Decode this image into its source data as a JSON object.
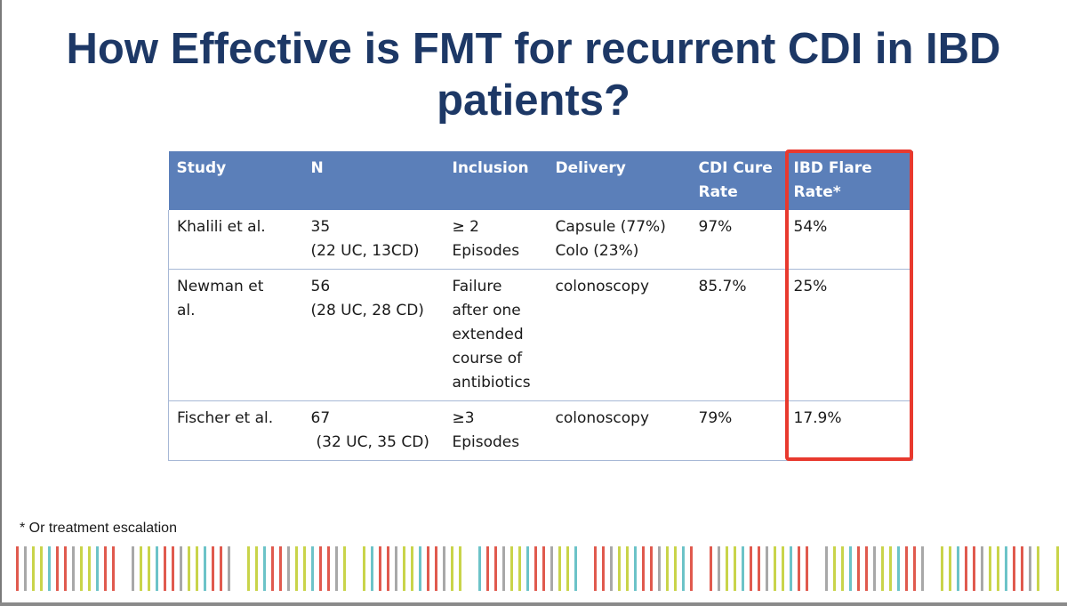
{
  "slide": {
    "title": "How Effective is FMT for recurrent CDI in IBD patients?",
    "footnote": "* Or treatment escalation"
  },
  "table": {
    "headers": [
      "Study",
      "N",
      "Inclusion",
      "Delivery",
      "CDI Cure Rate",
      "IBD Flare Rate*"
    ],
    "rows": [
      {
        "study": [
          "Khalili et al."
        ],
        "n": [
          "35",
          "(22 UC, 13CD)"
        ],
        "inclusion": [
          "≥ 2",
          "Episodes"
        ],
        "delivery": [
          "Capsule (77%)",
          "Colo (23%)"
        ],
        "cdi_cure_rate": "97%",
        "ibd_flare_rate": "54%"
      },
      {
        "study": [
          "Newman et",
          "al."
        ],
        "n": [
          "56",
          "(28 UC, 28 CD)"
        ],
        "inclusion": [
          "Failure",
          "after one",
          "extended",
          "course of",
          "antibiotics"
        ],
        "delivery": [
          "colonoscopy"
        ],
        "cdi_cure_rate": "85.7%",
        "ibd_flare_rate": "25%"
      },
      {
        "study": [
          "Fischer et al."
        ],
        "n": [
          "67",
          "(32 UC, 35 CD)"
        ],
        "inclusion": [
          "≥3",
          "Episodes"
        ],
        "delivery": [
          "colonoscopy"
        ],
        "cdi_cure_rate": "79%",
        "ibd_flare_rate": "17.9%"
      }
    ],
    "highlighted_column": "IBD Flare Rate*",
    "colors": {
      "header_bg": "#5b7fb9",
      "header_text": "#ffffff",
      "highlight": "#e8392e",
      "title": "#1d3866"
    }
  },
  "decoration": {
    "stripe_colors": [
      "#e05a4e",
      "#6cc3c8",
      "#c9d44a",
      "#a8a8a8"
    ]
  }
}
